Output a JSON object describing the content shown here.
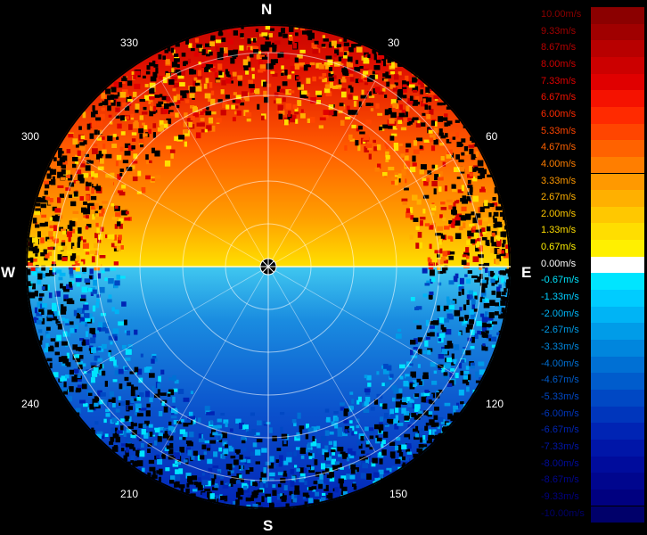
{
  "compass": {
    "north": "N",
    "south": "S",
    "east": "E",
    "west": "W"
  },
  "azimuth_labels": [
    "330",
    "30",
    "300",
    "60",
    "240",
    "120",
    "210",
    "150"
  ],
  "legend": {
    "entries": [
      {
        "label": "10.00m/s",
        "color": "#8b0000"
      },
      {
        "label": "9.33m/s",
        "color": "#a00000"
      },
      {
        "label": "8.67m/s",
        "color": "#b80000"
      },
      {
        "label": "8.00m/s",
        "color": "#cc0000"
      },
      {
        "label": "7.33m/s",
        "color": "#e00000"
      },
      {
        "label": "6.67m/s",
        "color": "#f51200"
      },
      {
        "label": "6.00m/s",
        "color": "#ff2a00"
      },
      {
        "label": "5.33m/s",
        "color": "#ff4500"
      },
      {
        "label": "4.67m/s",
        "color": "#ff6200"
      },
      {
        "label": "4.00m/s",
        "color": "#ff7e00"
      },
      {
        "label": "3.33m/s",
        "color": "#ff9900"
      },
      {
        "label": "2.67m/s",
        "color": "#ffb000"
      },
      {
        "label": "2.00m/s",
        "color": "#ffc800"
      },
      {
        "label": "1.33m/s",
        "color": "#ffde00"
      },
      {
        "label": "0.67m/s",
        "color": "#fff000"
      },
      {
        "label": "0.00m/s",
        "color": "#ffffff"
      },
      {
        "label": "-0.67m/s",
        "color": "#00e5ff"
      },
      {
        "label": "-1.33m/s",
        "color": "#00ccff"
      },
      {
        "label": "-2.00m/s",
        "color": "#00b4f5"
      },
      {
        "label": "-2.67m/s",
        "color": "#009ce8"
      },
      {
        "label": "-3.33m/s",
        "color": "#0086dd"
      },
      {
        "label": "-4.00m/s",
        "color": "#0070d4"
      },
      {
        "label": "-4.67m/s",
        "color": "#005ccc"
      },
      {
        "label": "-5.33m/s",
        "color": "#0048c4"
      },
      {
        "label": "-6.00m/s",
        "color": "#0036bc"
      },
      {
        "label": "-6.67m/s",
        "color": "#0024b4"
      },
      {
        "label": "-7.33m/s",
        "color": "#0016a8"
      },
      {
        "label": "-8.00m/s",
        "color": "#000c9c"
      },
      {
        "label": "-8.67m/s",
        "color": "#00068e"
      },
      {
        "label": "-9.33m/s",
        "color": "#000080"
      },
      {
        "label": "-10.00m/s",
        "color": "#00006a"
      }
    ]
  }
}
